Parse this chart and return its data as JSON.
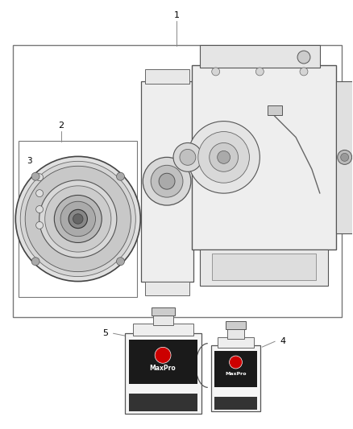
{
  "bg_color": "#ffffff",
  "line_color": "#666666",
  "text_color": "#000000",
  "label_color": "#333333",
  "label_1": "1",
  "label_2": "2",
  "label_3": "3",
  "label_4": "4",
  "label_5": "5",
  "mopar_text": "MaxPro",
  "fig_w": 4.38,
  "fig_h": 5.33,
  "dpi": 100
}
